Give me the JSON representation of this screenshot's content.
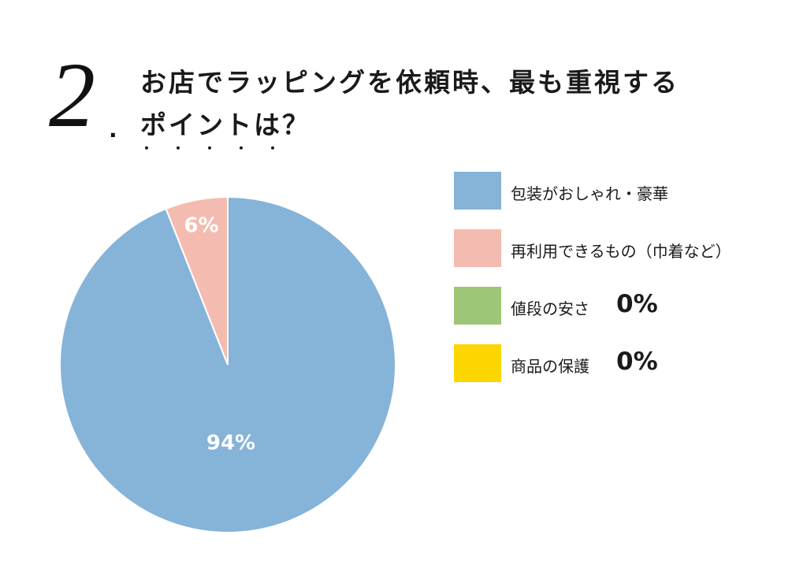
{
  "question": {
    "number": "2",
    "dot": ".",
    "title_line1": "お店でラッピングを依頼時、最も重視する",
    "title_line2": "ポイントは？",
    "emphasis_dots": "・・・・・"
  },
  "colors": {
    "blue": "#86b3d8",
    "pink": "#f4bcb0",
    "green": "#9dc776",
    "yellow": "#fdd500"
  },
  "chart_data": {
    "type": "pie",
    "slices": [
      {
        "label": "包装がおしゃれ・豪華",
        "value": 94,
        "display": "94%",
        "color": "#86b3d8"
      },
      {
        "label": "再利用できるもの（巾着など）",
        "value": 6,
        "display": "6%",
        "color": "#f4bcb0"
      },
      {
        "label": "値段の安さ",
        "value": 0,
        "display": "0%",
        "color": "#9dc776"
      },
      {
        "label": "商品の保護",
        "value": 0,
        "display": "0%",
        "color": "#fdd500"
      }
    ],
    "legend_placement": "right",
    "start_angle": "12 o'clock",
    "direction": "clockwise"
  },
  "legend": [
    {
      "label": "包装がおしゃれ・豪華",
      "value": ""
    },
    {
      "label": "再利用できるもの（巾着など）",
      "value": ""
    },
    {
      "label": "値段の安さ",
      "value": "0%"
    },
    {
      "label": "商品の保護",
      "value": "0%"
    }
  ]
}
